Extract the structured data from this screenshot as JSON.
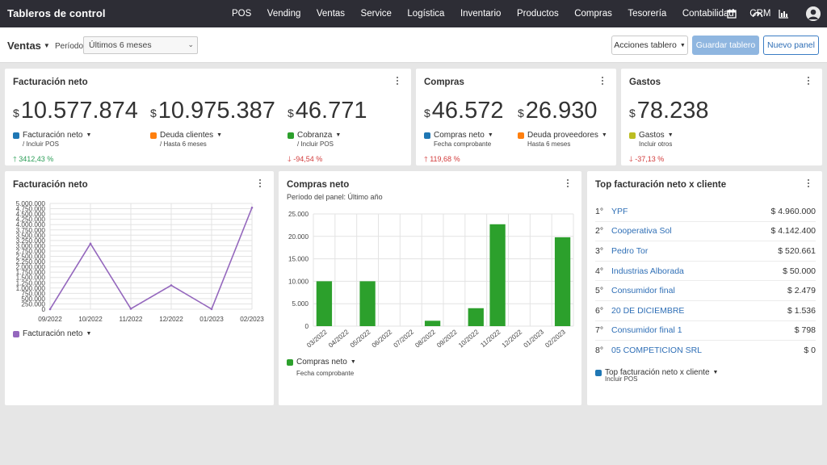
{
  "app": {
    "title": "Tableros de control"
  },
  "nav": {
    "links": [
      "POS",
      "Vending",
      "Ventas",
      "Service",
      "Logística",
      "Inventario",
      "Productos",
      "Compras",
      "Tesorería",
      "Contabilidad",
      "CRM"
    ],
    "icons": [
      "calendar-icon",
      "speedometer-icon",
      "bar-chart-icon",
      "user-avatar-icon"
    ]
  },
  "toolbar": {
    "dashboard": "Ventas",
    "period_label": "Período",
    "period_value": "Últimos 6 meses",
    "actions_label": "Acciones tablero",
    "save_label": "Guardar tablero",
    "new_label": "Nuevo panel"
  },
  "colors": {
    "blue": "#1f77b4",
    "orange": "#ff7f0e",
    "green": "#2ca02c",
    "purple": "#9467bd",
    "olive": "#bcbd22",
    "link": "#2f6fb6",
    "up": "#2a9d56",
    "down": "#d23b3b"
  },
  "facturacion": {
    "title": "Facturación neto",
    "metrics": [
      {
        "currency": "$",
        "value": "10.577.874",
        "label": "Facturación neto",
        "sub": "/ Incluir POS",
        "change": "3412,43 %",
        "trend": "up"
      },
      {
        "currency": "$",
        "value": "10.975.387",
        "label": "Deuda clientes",
        "sub": "/ Hasta 6 meses"
      },
      {
        "currency": "$",
        "value": "46.771",
        "label": "Cobranza",
        "sub": "/ Incluir POS",
        "change": "-94,54 %",
        "trend": "down"
      }
    ]
  },
  "compras": {
    "title": "Compras",
    "metrics": [
      {
        "currency": "$",
        "value": "46.572",
        "label": "Compras neto",
        "sub": "Fecha comprobante",
        "change": "119,68 %",
        "trend": "up"
      },
      {
        "currency": "$",
        "value": "26.930",
        "label": "Deuda proveedores",
        "sub": "Hasta 6 meses"
      }
    ]
  },
  "gastos": {
    "title": "Gastos",
    "metrics": [
      {
        "currency": "$",
        "value": "78.238",
        "label": "Gastos",
        "sub": "Incluir otros",
        "change": "-37,13 %",
        "trend": "down"
      }
    ]
  },
  "line_panel": {
    "title": "Facturación neto",
    "legend": "Facturación neto"
  },
  "bar_panel": {
    "title": "Compras neto",
    "subtitle": "Período del panel: Último año",
    "legend": "Compras neto",
    "legend_sub": "Fecha comprobante"
  },
  "top_panel": {
    "title": "Top facturación neto x cliente",
    "rows": [
      {
        "rank": "1°",
        "name": "YPF",
        "amount": "$ 4.960.000"
      },
      {
        "rank": "2°",
        "name": "Cooperativa Sol",
        "amount": "$ 4.142.400"
      },
      {
        "rank": "3°",
        "name": "Pedro Tor",
        "amount": "$ 520.661"
      },
      {
        "rank": "4°",
        "name": "Industrias Alborada",
        "amount": "$ 50.000"
      },
      {
        "rank": "5°",
        "name": "Consumidor final",
        "amount": "$ 2.479"
      },
      {
        "rank": "6°",
        "name": "20 DE DICIEMBRE",
        "amount": "$ 1.536"
      },
      {
        "rank": "7°",
        "name": "Consumidor final 1",
        "amount": "$ 798"
      },
      {
        "rank": "8°",
        "name": "05 COMPETICION SRL",
        "amount": "$ 0"
      }
    ],
    "legend": "Top facturación neto x cliente",
    "legend_sub": "Incluir POS"
  },
  "chart_data": [
    {
      "type": "line",
      "title": "Facturación neto",
      "categories": [
        "09/2022",
        "10/2022",
        "11/2022",
        "12/2022",
        "01/2023",
        "02/2023"
      ],
      "series": [
        {
          "name": "Facturación neto",
          "values": [
            0,
            3100000,
            20000,
            1130000,
            5000,
            4800000
          ]
        }
      ],
      "yticks": [
        "0",
        "250.000",
        "500.000",
        "750.000",
        "1.000.000",
        "1.250.000",
        "1.500.000",
        "1.750.000",
        "2.000.000",
        "2.250.000",
        "2.500.000",
        "2.750.000",
        "3.000.000",
        "3.250.000",
        "3.500.000",
        "3.750.000",
        "4.000.000",
        "4.250.000",
        "4.500.000",
        "4.750.000",
        "5.000.000"
      ],
      "ylim": [
        0,
        5000000
      ],
      "grid": true,
      "legend": "bottom-left"
    },
    {
      "type": "bar",
      "title": "Compras neto",
      "categories": [
        "03/2022",
        "04/2022",
        "05/2022",
        "06/2022",
        "07/2022",
        "08/2022",
        "09/2022",
        "10/2022",
        "11/2022",
        "12/2022",
        "01/2023",
        "02/2023"
      ],
      "series": [
        {
          "name": "Compras neto",
          "values": [
            10000,
            0,
            10000,
            0,
            0,
            1200,
            0,
            4000,
            22700,
            0,
            0,
            19800
          ]
        }
      ],
      "yticks": [
        "0",
        "5.000",
        "10.000",
        "15.000",
        "20.000",
        "25.000"
      ],
      "ylim": [
        0,
        25000
      ],
      "grid": true,
      "legend": "bottom-left"
    }
  ]
}
